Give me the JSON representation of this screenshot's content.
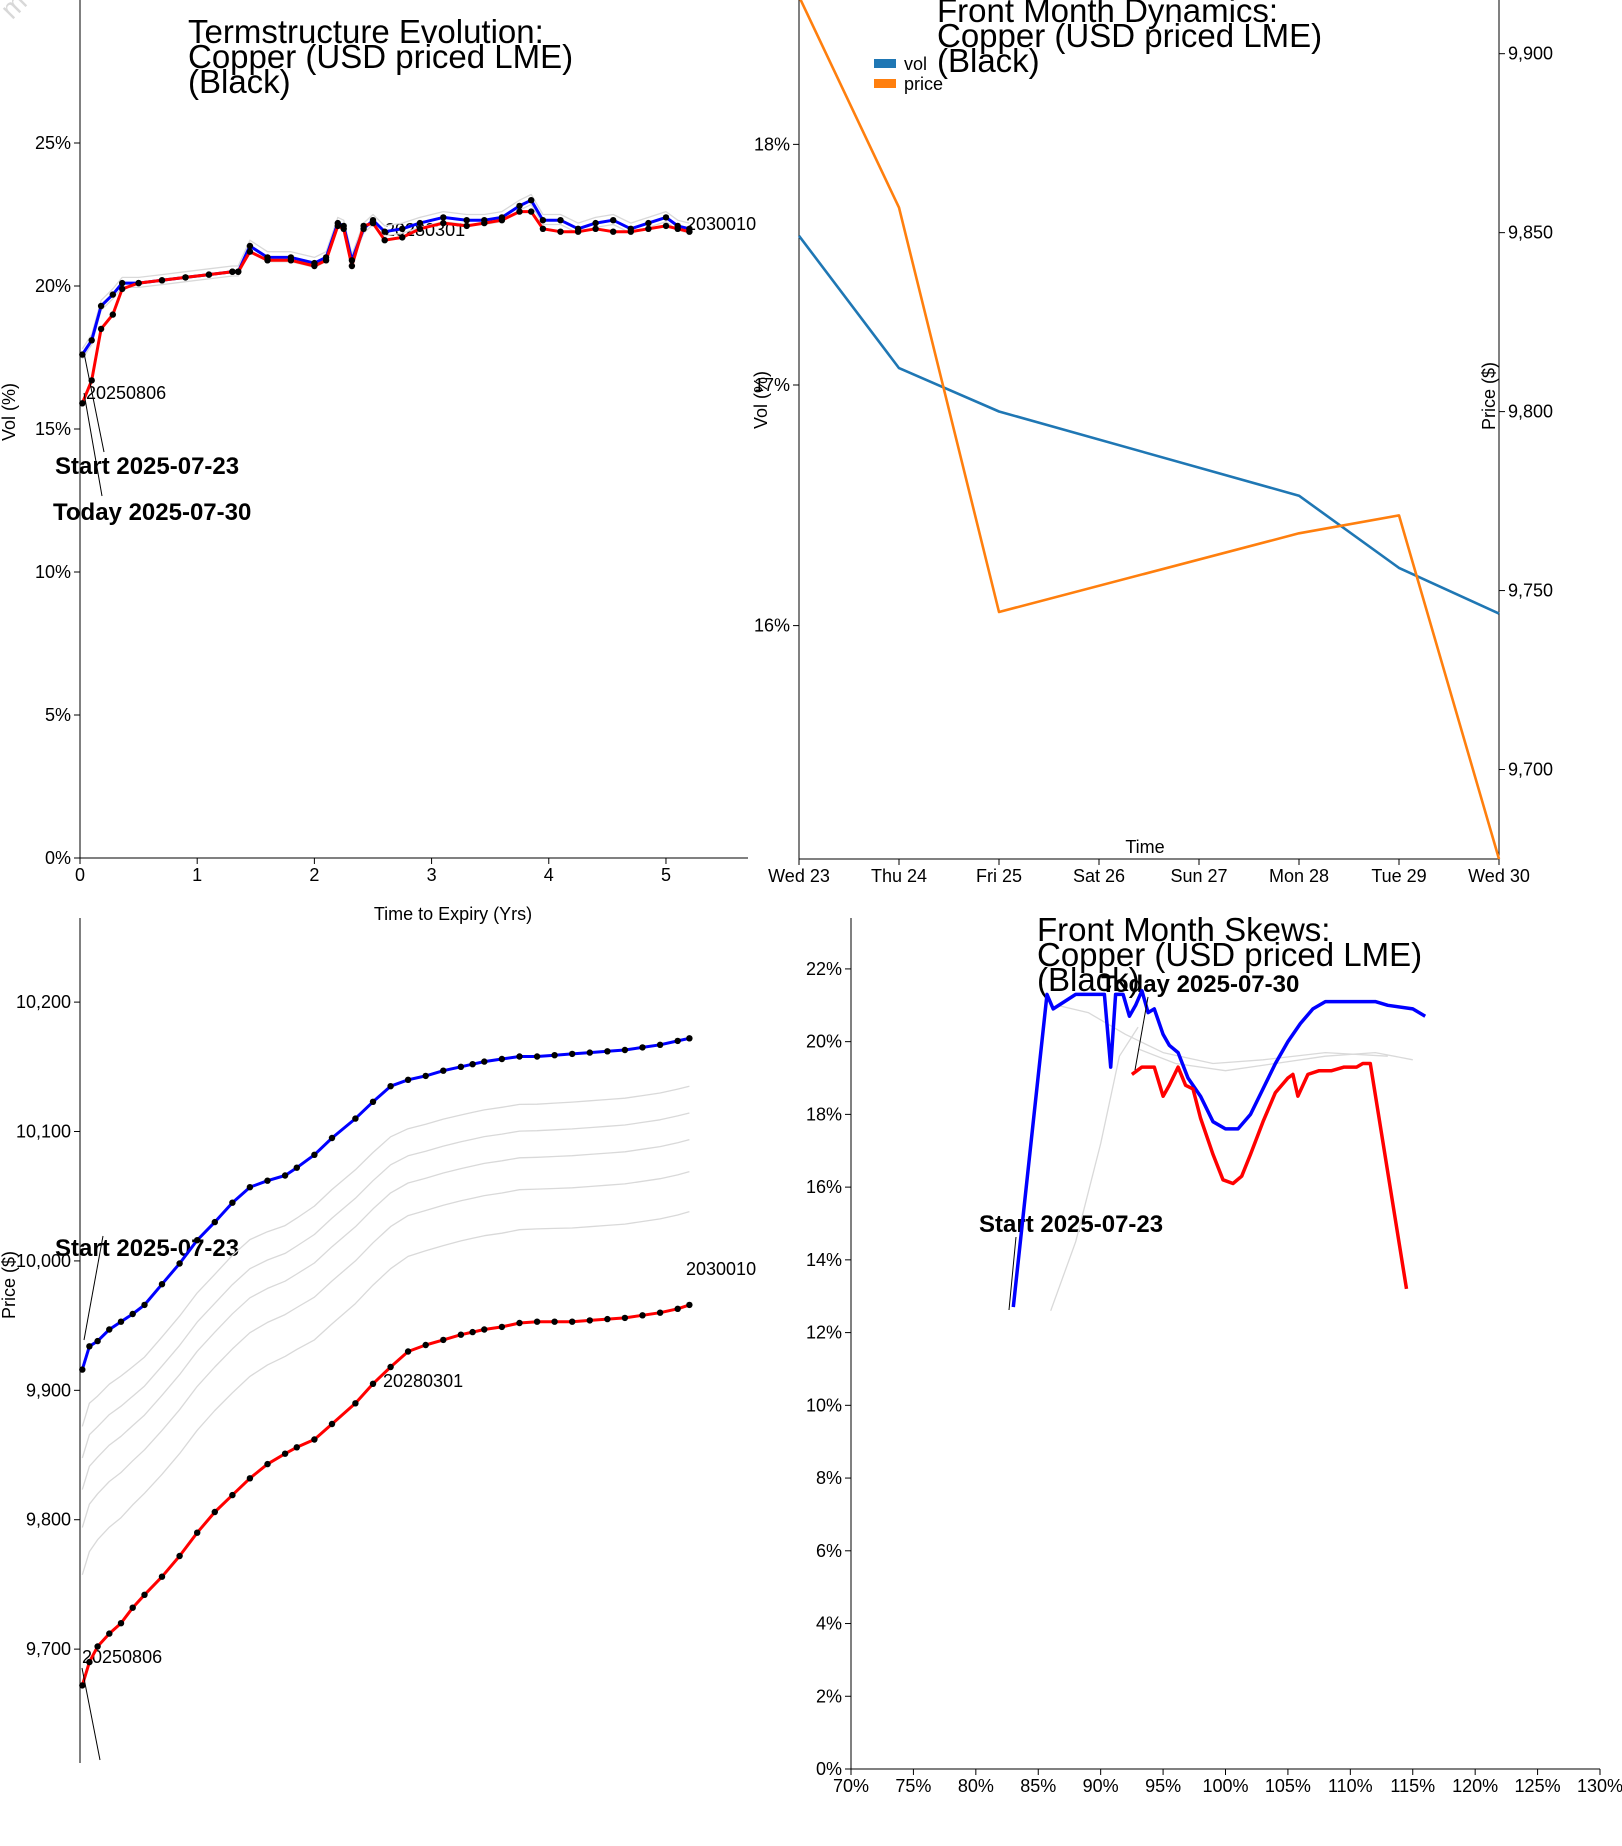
{
  "watermark": "m",
  "chart_data": [
    {
      "id": "term",
      "type": "line",
      "title_lines": [
        "Termstructure Evolution:",
        "Copper (USD priced LME)",
        "(Black)"
      ],
      "xlabel": "Time to Expiry (Yrs)",
      "ylabel": "Vol (%)",
      "xlim": [
        0,
        5.7
      ],
      "ylim": [
        0,
        30
      ],
      "x_ticks": [
        0,
        1,
        2,
        3,
        4,
        5
      ],
      "x_tick_labels": [
        "0",
        "1",
        "2",
        "3",
        "4",
        "5"
      ],
      "y_ticks": [
        0,
        5,
        10,
        15,
        20,
        25
      ],
      "y_tick_labels": [
        "0%",
        "5%",
        "10%",
        "15%",
        "20%",
        "25%"
      ],
      "series": [
        {
          "color": "#0000ff",
          "markers": true,
          "x": [
            0.02,
            0.1,
            0.18,
            0.28,
            0.36,
            0.5,
            0.7,
            0.9,
            1.1,
            1.3,
            1.35,
            1.45,
            1.6,
            1.8,
            2.0,
            2.1,
            2.2,
            2.25,
            2.32,
            2.42,
            2.5,
            2.6,
            2.75,
            2.9,
            3.1,
            3.3,
            3.45,
            3.6,
            3.75,
            3.85,
            3.95,
            4.1,
            4.25,
            4.4,
            4.55,
            4.7,
            4.85,
            5.0,
            5.1,
            5.2
          ],
          "y": [
            17.6,
            18.1,
            19.3,
            19.7,
            20.1,
            20.1,
            20.2,
            20.3,
            20.4,
            20.5,
            20.5,
            21.4,
            21.0,
            21.0,
            20.8,
            21.0,
            22.2,
            22.1,
            20.9,
            22.0,
            22.3,
            21.9,
            22.0,
            22.2,
            22.4,
            22.3,
            22.3,
            22.4,
            22.8,
            23.0,
            22.3,
            22.3,
            22.0,
            22.2,
            22.3,
            22.0,
            22.2,
            22.4,
            22.1,
            22.0
          ]
        },
        {
          "color": "#ff0000",
          "markers": true,
          "x": [
            0.02,
            0.1,
            0.18,
            0.28,
            0.36,
            0.5,
            0.7,
            0.9,
            1.1,
            1.3,
            1.35,
            1.45,
            1.6,
            1.8,
            2.0,
            2.1,
            2.2,
            2.25,
            2.32,
            2.42,
            2.5,
            2.6,
            2.75,
            2.9,
            3.1,
            3.3,
            3.45,
            3.6,
            3.75,
            3.85,
            3.95,
            4.1,
            4.25,
            4.4,
            4.55,
            4.7,
            4.85,
            5.0,
            5.1,
            5.2
          ],
          "y": [
            15.9,
            16.7,
            18.5,
            19.0,
            19.9,
            20.1,
            20.2,
            20.3,
            20.4,
            20.5,
            20.5,
            21.2,
            20.9,
            20.9,
            20.7,
            20.9,
            22.1,
            22.0,
            20.7,
            22.1,
            22.2,
            21.6,
            21.7,
            22.0,
            22.2,
            22.1,
            22.2,
            22.3,
            22.6,
            22.6,
            22.0,
            21.9,
            21.9,
            22.0,
            21.9,
            21.9,
            22.0,
            22.1,
            22.0,
            21.9
          ]
        }
      ],
      "label_mid": "20280301",
      "label_end": "2030010",
      "label_first": "20250806",
      "annotation_start": "Start 2025-07-23",
      "annotation_today": "Today 2025-07-30"
    },
    {
      "id": "dynamics",
      "type": "line",
      "title_lines": [
        "Front Month Dynamics:",
        "Copper (USD priced LME)",
        "(Black)"
      ],
      "xlabel": "Time",
      "ylabel": "Vol (%)",
      "ylabel_right": "Price ($)",
      "categories": [
        "Wed 23",
        "Thu 24",
        "Fri 25",
        "Sat 26",
        "Sun 27",
        "Mon 28",
        "Tue 29",
        "Wed 30"
      ],
      "x_days": [
        0,
        1,
        2,
        3,
        4,
        5,
        6,
        7
      ],
      "ylim": [
        15.03,
        18.6
      ],
      "ylim_right": [
        9675,
        9915
      ],
      "y_ticks": [
        16,
        17,
        18
      ],
      "y_tick_labels": [
        "16%",
        "17%",
        "18%"
      ],
      "y_ticks_right": [
        9700,
        9750,
        9800,
        9850,
        9900
      ],
      "y_tick_labels_right": [
        "9,700",
        "9,750",
        "9,800",
        "9,850",
        "9,900"
      ],
      "series": [
        {
          "name": "vol",
          "axis": "left",
          "color": "#1f77b4",
          "x": [
            0,
            1,
            2,
            5,
            6,
            7
          ],
          "y": [
            17.62,
            17.07,
            16.89,
            16.54,
            16.24,
            16.05
          ]
        },
        {
          "name": "price",
          "axis": "right",
          "color": "#ff7f0e",
          "x": [
            0,
            1,
            2,
            5,
            6,
            7
          ],
          "y": [
            9916,
            9857,
            9744,
            9766,
            9771,
            9675
          ]
        }
      ]
    },
    {
      "id": "price_term",
      "type": "line",
      "xlabel": "",
      "ylabel": "Price ($)",
      "xlim": [
        0,
        5.7
      ],
      "ylim": [
        9612,
        10265
      ],
      "y_ticks": [
        9700,
        9800,
        9900,
        10000,
        10100,
        10200
      ],
      "y_tick_labels": [
        "9,700",
        "9,800",
        "9,900",
        "10,000",
        "10,100",
        "10,200"
      ],
      "series": [
        {
          "color": "#0000ff",
          "markers": true,
          "x": [
            0.02,
            0.08,
            0.15,
            0.25,
            0.35,
            0.45,
            0.55,
            0.7,
            0.85,
            1.0,
            1.15,
            1.3,
            1.45,
            1.6,
            1.75,
            1.85,
            2.0,
            2.15,
            2.35,
            2.5,
            2.65,
            2.8,
            2.95,
            3.1,
            3.25,
            3.35,
            3.45,
            3.6,
            3.75,
            3.9,
            4.05,
            4.2,
            4.35,
            4.5,
            4.65,
            4.8,
            4.95,
            5.1,
            5.2
          ],
          "y": [
            9916,
            9934,
            9938,
            9947,
            9953,
            9959,
            9966,
            9982,
            9998,
            10016,
            10030,
            10045,
            10057,
            10062,
            10066,
            10072,
            10082,
            10095,
            10110,
            10123,
            10135,
            10140,
            10143,
            10147,
            10150,
            10152,
            10154,
            10156,
            10158,
            10158,
            10159,
            10160,
            10161,
            10162,
            10163,
            10165,
            10167,
            10170,
            10172
          ]
        },
        {
          "color": "#ff0000",
          "markers": true,
          "x": [
            0.02,
            0.08,
            0.15,
            0.25,
            0.35,
            0.45,
            0.55,
            0.7,
            0.85,
            1.0,
            1.15,
            1.3,
            1.45,
            1.6,
            1.75,
            1.85,
            2.0,
            2.15,
            2.35,
            2.5,
            2.65,
            2.8,
            2.95,
            3.1,
            3.25,
            3.35,
            3.45,
            3.6,
            3.75,
            3.9,
            4.05,
            4.2,
            4.35,
            4.5,
            4.65,
            4.8,
            4.95,
            5.1,
            5.2
          ],
          "y": [
            9672,
            9690,
            9702,
            9712,
            9720,
            9732,
            9742,
            9756,
            9772,
            9790,
            9806,
            9819,
            9832,
            9843,
            9851,
            9856,
            9862,
            9874,
            9890,
            9905,
            9918,
            9930,
            9935,
            9939,
            9943,
            9945,
            9947,
            9949,
            9952,
            9953,
            9953,
            9953,
            9954,
            9955,
            9956,
            9958,
            9960,
            9963,
            9966
          ]
        }
      ],
      "label_mid": "20280301",
      "label_end": "2030010",
      "label_first": "20250806",
      "annotation_start": "Start 2025-07-23"
    },
    {
      "id": "skews",
      "type": "line",
      "title_lines": [
        "Front Month Skews:",
        "Copper (USD priced LME)",
        "(Black)"
      ],
      "xlabel": "",
      "ylabel": "",
      "xlim": [
        70,
        130
      ],
      "ylim": [
        0,
        23.4
      ],
      "x_ticks": [
        70,
        75,
        80,
        85,
        90,
        95,
        100,
        105,
        110,
        115,
        120,
        125,
        130
      ],
      "x_tick_labels": [
        "70%",
        "75%",
        "80%",
        "85%",
        "90%",
        "95%",
        "100%",
        "105%",
        "110%",
        "115%",
        "120%",
        "125%",
        "130%"
      ],
      "y_ticks": [
        0,
        2,
        4,
        6,
        8,
        10,
        12,
        14,
        16,
        18,
        20,
        22
      ],
      "y_tick_labels": [
        "0%",
        "2%",
        "4%",
        "6%",
        "8%",
        "10%",
        "12%",
        "14%",
        "16%",
        "18%",
        "20%",
        "22%"
      ],
      "series": [
        {
          "color": "#0000ff",
          "x": [
            83,
            85.7,
            86.2,
            88,
            90,
            90.3,
            90.8,
            91.2,
            91.8,
            92.3,
            92.8,
            93.3,
            93.8,
            94.3,
            95,
            95.5,
            96.2,
            97,
            98,
            99,
            100,
            101,
            102,
            103,
            104,
            105,
            106,
            107,
            108,
            110,
            112,
            113,
            115,
            116
          ],
          "y": [
            12.7,
            21.3,
            20.9,
            21.3,
            21.3,
            21.3,
            19.3,
            21.3,
            21.3,
            20.7,
            21.0,
            21.4,
            20.8,
            20.9,
            20.2,
            19.9,
            19.7,
            19.0,
            18.5,
            17.8,
            17.6,
            17.6,
            18.0,
            18.7,
            19.4,
            20.0,
            20.5,
            20.9,
            21.1,
            21.1,
            21.1,
            21.0,
            20.9,
            20.7
          ]
        },
        {
          "color": "#ff0000",
          "x": [
            92.5,
            93.3,
            93.8,
            94.3,
            95,
            95.5,
            96.2,
            96.8,
            97.4,
            98,
            99,
            99.8,
            100.6,
            101.3,
            102,
            103,
            104,
            105,
            105.4,
            105.8,
            106.6,
            107.5,
            108.5,
            109.5,
            110.5,
            111,
            111.6,
            114.5
          ],
          "y": [
            19.1,
            19.3,
            19.3,
            19.3,
            18.5,
            18.8,
            19.3,
            18.8,
            18.7,
            17.9,
            16.9,
            16.2,
            16.1,
            16.3,
            16.9,
            17.8,
            18.6,
            19.0,
            19.1,
            18.5,
            19.1,
            19.2,
            19.2,
            19.3,
            19.3,
            19.4,
            19.4,
            13.2
          ]
        }
      ],
      "annotation_start": "Start 2025-07-23",
      "annotation_today": "Today 2025-07-30"
    }
  ]
}
